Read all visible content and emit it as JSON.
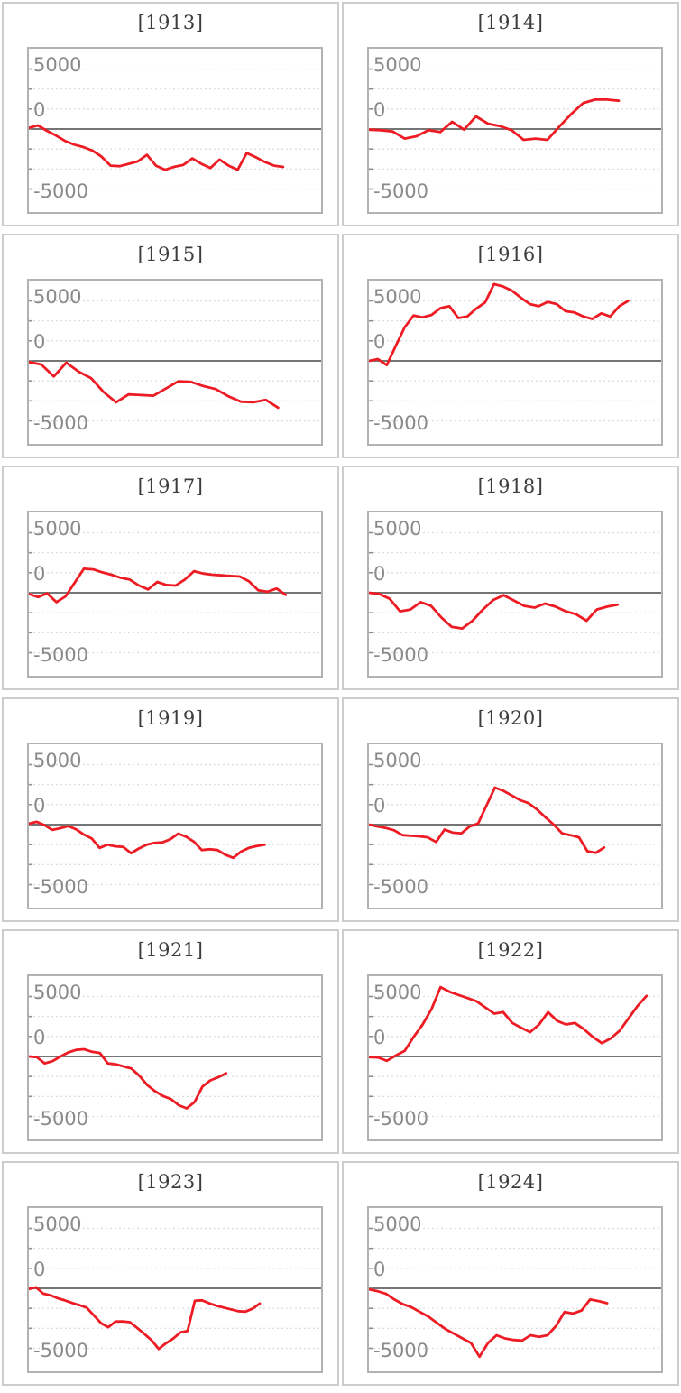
{
  "colors": {
    "line": "#ed1c24",
    "grid_dotted": "#d9d9d9",
    "zero_line": "#757575",
    "plot_border": "#b2b2b2",
    "panel_border": "#cdcdcd",
    "title_text": "#3d3d3d",
    "tick_label_text": "#8a8a8a",
    "tick_mark": "#8f8f8f",
    "background": "#ffffff"
  },
  "axis": {
    "y_tick_labels": [
      "5000",
      "0",
      "-5000"
    ],
    "y_gridline_step": 1666.67,
    "x_axis": "unlabeled"
  },
  "chart_data": [
    {
      "type": "line",
      "title": "[1913]",
      "y_ticks": [
        "5000",
        "0",
        "-5000"
      ],
      "ylim": [
        -6900,
        6700
      ],
      "grid": "horizontal dotted every 1667, solid line at 0",
      "legend": "none",
      "x_span_fraction": 0.87,
      "values": [
        100,
        300,
        -150,
        -550,
        -1000,
        -1300,
        -1500,
        -1800,
        -2300,
        -3050,
        -3100,
        -2900,
        -2700,
        -2150,
        -3050,
        -3400,
        -3150,
        -3000,
        -2450,
        -2900,
        -3250,
        -2550,
        -3050,
        -3400,
        -2000,
        -2350,
        -2750,
        -3050,
        -3160
      ]
    },
    {
      "type": "line",
      "title": "[1914]",
      "y_ticks": [
        "5000",
        "0",
        "-5000"
      ],
      "ylim": [
        -6900,
        6700
      ],
      "grid": "horizontal dotted every 1667, solid line at 0",
      "legend": "none",
      "x_span_fraction": 0.855,
      "values": [
        -50,
        -100,
        -200,
        -800,
        -600,
        -100,
        -250,
        600,
        -50,
        1050,
        450,
        250,
        -100,
        -900,
        -800,
        -900,
        200,
        1250,
        2150,
        2450,
        2450,
        2350
      ]
    },
    {
      "type": "line",
      "title": "[1915]",
      "y_ticks": [
        "5000",
        "0",
        "-5000"
      ],
      "ylim": [
        -6900,
        6700
      ],
      "grid": "horizontal dotted every 1667, solid line at 0",
      "legend": "none",
      "x_span_fraction": 0.853,
      "values": [
        -100,
        -300,
        -1300,
        -150,
        -900,
        -1450,
        -2600,
        -3450,
        -2800,
        -2850,
        -2900,
        -2300,
        -1700,
        -1750,
        -2100,
        -2350,
        -2950,
        -3400,
        -3450,
        -3250,
        -3900
      ]
    },
    {
      "type": "line",
      "title": "[1916]",
      "y_ticks": [
        "5000",
        "0",
        "-5000"
      ],
      "ylim": [
        -6900,
        6700
      ],
      "grid": "horizontal dotted every 1667, solid line at 0",
      "legend": "none",
      "x_span_fraction": 0.887,
      "values": [
        0,
        150,
        -350,
        1240,
        2800,
        3780,
        3630,
        3830,
        4400,
        4560,
        3570,
        3700,
        4350,
        4870,
        6400,
        6200,
        5850,
        5260,
        4740,
        4560,
        4920,
        4740,
        4140,
        4040,
        3700,
        3500,
        3960,
        3700,
        4560,
        5000
      ]
    },
    {
      "type": "line",
      "title": "[1917]",
      "y_ticks": [
        "5000",
        "0",
        "-5000"
      ],
      "ylim": [
        -6900,
        6700
      ],
      "grid": "horizontal dotted every 1667, solid line at 0",
      "legend": "none",
      "x_span_fraction": 0.879,
      "values": [
        -100,
        -360,
        -50,
        -780,
        -300,
        850,
        2000,
        1950,
        1700,
        1500,
        1250,
        1100,
        600,
        280,
        900,
        650,
        600,
        1100,
        1800,
        1600,
        1500,
        1450,
        1400,
        1350,
        950,
        200,
        80,
        350,
        -180
      ]
    },
    {
      "type": "line",
      "title": "[1918]",
      "y_ticks": [
        "5000",
        "0",
        "-5000"
      ],
      "ylim": [
        -6900,
        6700
      ],
      "grid": "horizontal dotted every 1667, solid line at 0",
      "legend": "none",
      "x_span_fraction": 0.851,
      "values": [
        0,
        -100,
        -500,
        -1550,
        -1400,
        -780,
        -1100,
        -2070,
        -2850,
        -2980,
        -2330,
        -1400,
        -600,
        -200,
        -650,
        -1100,
        -1240,
        -900,
        -1160,
        -1550,
        -1800,
        -2330,
        -1400,
        -1160,
        -990
      ]
    },
    {
      "type": "line",
      "title": "[1919]",
      "y_ticks": [
        "5000",
        "0",
        "-5000"
      ],
      "ylim": [
        -6900,
        6700
      ],
      "grid": "horizontal dotted every 1667, solid line at 0",
      "legend": "none",
      "x_span_fraction": 0.807,
      "values": [
        80,
        230,
        -50,
        -440,
        -300,
        -130,
        -390,
        -830,
        -1160,
        -1940,
        -1680,
        -1810,
        -1860,
        -2380,
        -1990,
        -1680,
        -1530,
        -1480,
        -1220,
        -750,
        -1010,
        -1420,
        -2120,
        -2050,
        -2120,
        -2510,
        -2770,
        -2250,
        -1940,
        -1790,
        -1680
      ]
    },
    {
      "type": "line",
      "title": "[1920]",
      "y_ticks": [
        "5000",
        "0",
        "-5000"
      ],
      "ylim": [
        -6900,
        6700
      ],
      "grid": "horizontal dotted every 1667, solid line at 0",
      "legend": "none",
      "x_span_fraction": 0.805,
      "values": [
        0,
        -150,
        -280,
        -470,
        -880,
        -930,
        -980,
        -1060,
        -1450,
        -410,
        -670,
        -730,
        -150,
        100,
        1600,
        3080,
        2820,
        2430,
        2040,
        1790,
        1270,
        620,
        0,
        -730,
        -880,
        -1060,
        -2220,
        -2350,
        -1910
      ]
    },
    {
      "type": "line",
      "title": "[1921]",
      "y_ticks": [
        "5000",
        "0",
        "-5000"
      ],
      "ylim": [
        -6900,
        6700
      ],
      "grid": "horizontal dotted every 1667, solid line at 0",
      "legend": "none",
      "x_span_fraction": 0.675,
      "values": [
        0,
        -50,
        -570,
        -390,
        0,
        340,
        550,
        600,
        390,
        290,
        -570,
        -650,
        -830,
        -1010,
        -1600,
        -2380,
        -2900,
        -3290,
        -3550,
        -4060,
        -4320,
        -3800,
        -2500,
        -1990,
        -1730,
        -1400
      ]
    },
    {
      "type": "line",
      "title": "[1922]",
      "y_ticks": [
        "5000",
        "0",
        "-5000"
      ],
      "ylim": [
        -6900,
        6700
      ],
      "grid": "horizontal dotted every 1667, solid line at 0",
      "legend": "none",
      "x_span_fraction": 0.95,
      "values": [
        -50,
        -80,
        -360,
        80,
        470,
        1630,
        2670,
        3960,
        5780,
        5390,
        5130,
        4870,
        4610,
        4090,
        3570,
        3700,
        2800,
        2400,
        2020,
        2670,
        3700,
        2980,
        2670,
        2800,
        2280,
        1630,
        1110,
        1500,
        2150,
        3180,
        4220,
        5050
      ]
    },
    {
      "type": "line",
      "title": "[1923]",
      "y_ticks": [
        "5000",
        "0",
        "-5000"
      ],
      "ylim": [
        -6900,
        6700
      ],
      "grid": "horizontal dotted every 1667, solid line at 0",
      "legend": "none",
      "x_span_fraction": 0.79,
      "values": [
        -50,
        80,
        -440,
        -580,
        -830,
        -1010,
        -1220,
        -1400,
        -1600,
        -2250,
        -2900,
        -3240,
        -2770,
        -2750,
        -2820,
        -3290,
        -3800,
        -4320,
        -5050,
        -4580,
        -4190,
        -3680,
        -3550,
        -1040,
        -1000,
        -1250,
        -1450,
        -1600,
        -1750,
        -1900,
        -1940,
        -1700,
        -1270
      ]
    },
    {
      "type": "line",
      "title": "[1924]",
      "y_ticks": [
        "5000",
        "0",
        "-5000"
      ],
      "ylim": [
        -6900,
        6700
      ],
      "grid": "horizontal dotted every 1667, solid line at 0",
      "legend": "none",
      "x_span_fraction": 0.815,
      "values": [
        -80,
        -230,
        -460,
        -930,
        -1320,
        -1580,
        -1970,
        -2360,
        -2870,
        -3390,
        -3780,
        -4170,
        -4560,
        -5700,
        -4560,
        -3910,
        -4170,
        -4300,
        -4350,
        -3910,
        -4040,
        -3910,
        -3130,
        -1970,
        -2100,
        -1840,
        -930,
        -1060,
        -1240
      ]
    }
  ]
}
